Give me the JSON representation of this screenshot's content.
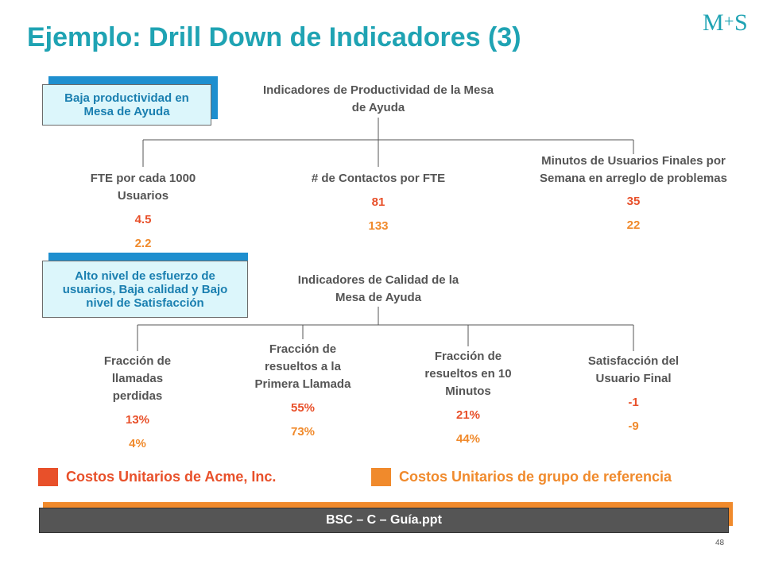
{
  "slide": {
    "title": "Ejemplo: Drill Down de Indicadores (3)",
    "logo_text": "M+S",
    "page_number": "48"
  },
  "productivity": {
    "callout": "Baja productividad en Mesa de Ayuda",
    "header": "Indicadores de Productividad de la Mesa de Ayuda",
    "items": [
      {
        "label": "FTE por cada 1000 Usuarios",
        "acme": "4.5",
        "peer": "2.2"
      },
      {
        "label": "# de Contactos por FTE",
        "acme": "81",
        "peer": "133"
      },
      {
        "label": "Minutos de Usuarios Finales por Semana en arreglo de problemas",
        "acme": "35",
        "peer": "22"
      }
    ]
  },
  "quality": {
    "callout": "Alto nivel de esfuerzo de usuarios, Baja calidad y Bajo nivel de Satisfacción",
    "header": "Indicadores de Calidad de la Mesa de Ayuda",
    "items": [
      {
        "label": "Fracción de llamadas perdidas",
        "acme": "13%",
        "peer": "4%"
      },
      {
        "label": "Fracción de resueltos a la Primera Llamada",
        "acme": "55%",
        "peer": "73%"
      },
      {
        "label": "Fracción de resueltos en 10 Minutos",
        "acme": "21%",
        "peer": "44%"
      },
      {
        "label": "Satisfacción del Usuario Final",
        "acme": "-1",
        "peer": "-9"
      }
    ]
  },
  "legend": {
    "acme": {
      "label": "Costos Unitarios de Acme, Inc.",
      "color": "#e8502a"
    },
    "peer": {
      "label": "Costos Unitarios de grupo de referencia",
      "color": "#f08a2c"
    }
  },
  "footer": {
    "text": "BSC – C – Guía.ppt"
  },
  "colors": {
    "title": "#1fa3b3",
    "callout_shadow": "#1e8fcf",
    "callout_fill": "#dcf6fb"
  }
}
